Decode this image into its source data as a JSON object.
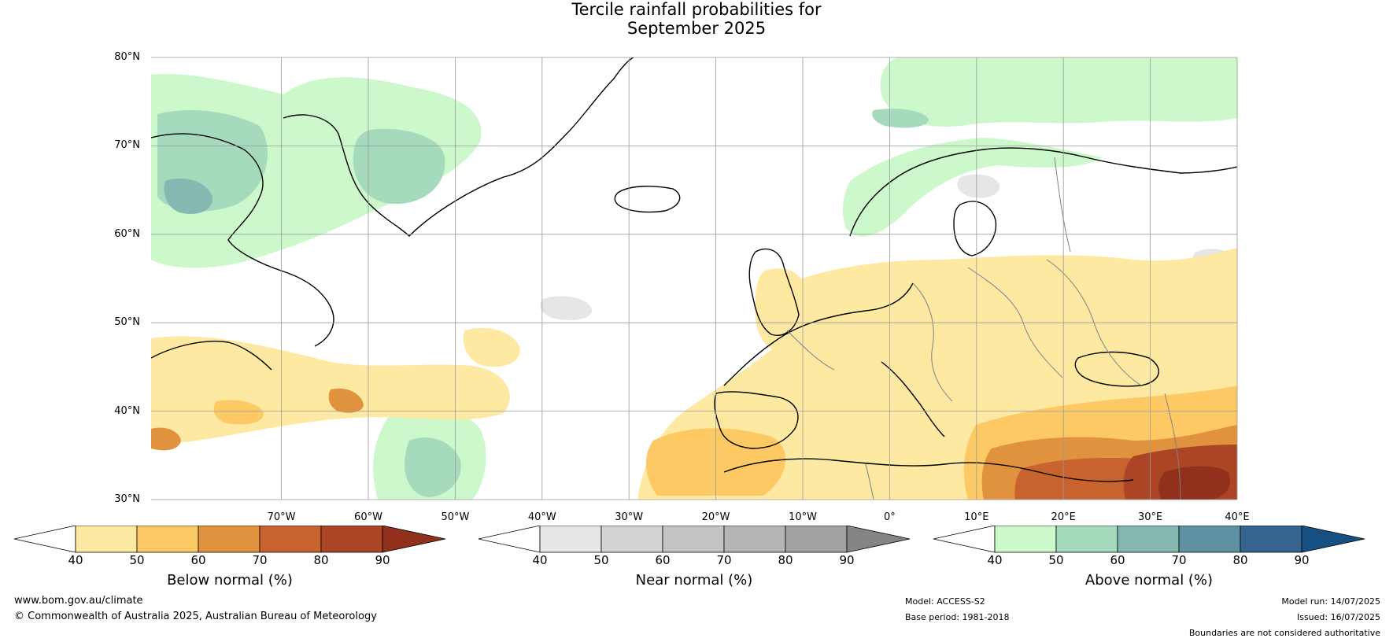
{
  "title": {
    "line1": "Tercile rainfall probabilities for",
    "line2": "September 2025"
  },
  "map": {
    "extent": {
      "lon_min": -85,
      "lon_max": 40,
      "lat_min": 30,
      "lat_max": 80
    },
    "lat_labels": [
      {
        "lat": 80,
        "text": "80°N"
      },
      {
        "lat": 70,
        "text": "70°N"
      },
      {
        "lat": 60,
        "text": "60°N"
      },
      {
        "lat": 50,
        "text": "50°N"
      },
      {
        "lat": 40,
        "text": "40°N"
      },
      {
        "lat": 30,
        "text": "30°N"
      }
    ],
    "lon_labels": [
      {
        "lon": -70,
        "text": "70°W"
      },
      {
        "lon": -60,
        "text": "60°W"
      },
      {
        "lon": -50,
        "text": "50°W"
      },
      {
        "lon": -40,
        "text": "40°W"
      },
      {
        "lon": -30,
        "text": "30°W"
      },
      {
        "lon": -20,
        "text": "20°W"
      },
      {
        "lon": -10,
        "text": "10°W"
      },
      {
        "lon": 0,
        "text": "0°"
      },
      {
        "lon": 10,
        "text": "10°E"
      },
      {
        "lon": 20,
        "text": "20°E"
      },
      {
        "lon": 30,
        "text": "30°E"
      },
      {
        "lon": 40,
        "text": "40°E"
      }
    ],
    "gridlines": true
  },
  "legends": [
    {
      "id": "below",
      "label": "Below normal (%)",
      "colors": [
        "#fde9a2",
        "#fdc964",
        "#e0923f",
        "#c8622e",
        "#ac4526",
        "#91301c"
      ],
      "extend_min_color": "#ffffff",
      "ticks": [
        "40",
        "50",
        "60",
        "70",
        "80",
        "90"
      ]
    },
    {
      "id": "near",
      "label": "Near normal (%)",
      "colors": [
        "#e6e6e6",
        "#d3d3d3",
        "#c4c4c4",
        "#b5b5b5",
        "#a2a2a2",
        "#858585"
      ],
      "extend_min_color": "#ffffff",
      "ticks": [
        "40",
        "50",
        "60",
        "70",
        "80",
        "90"
      ]
    },
    {
      "id": "above",
      "label": "Above normal (%)",
      "colors": [
        "#ccf8cc",
        "#a6dabc",
        "#84b8b0",
        "#5f91a3",
        "#34648f",
        "#164f82"
      ],
      "extend_min_color": "#ffffff",
      "ticks": [
        "40",
        "50",
        "60",
        "70",
        "80",
        "90"
      ]
    }
  ],
  "footer": {
    "website": "www.bom.gov.au/climate",
    "copyright": "© Commonwealth of Australia 2025, Australian Bureau of Meteorology",
    "model": "Model: ACCESS-S2",
    "base_period": "Base period: 1981-2018",
    "model_run": "Model run: 14/07/2025",
    "issued": "Issued: 16/07/2025",
    "disclaimer": "Boundaries are not considered authoritative"
  }
}
